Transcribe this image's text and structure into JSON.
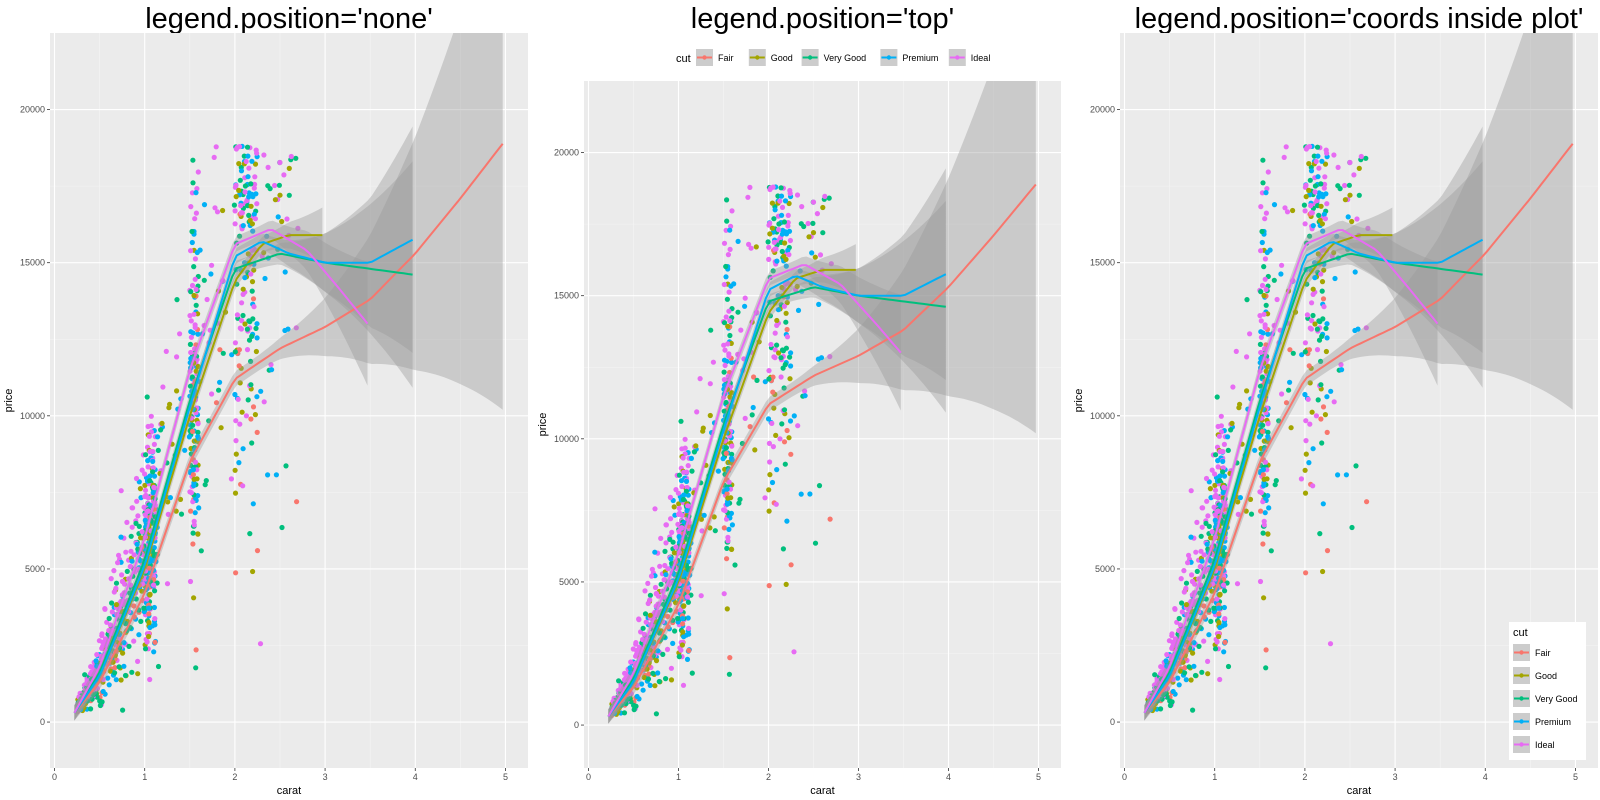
{
  "chart_data": [
    {
      "type": "scatter",
      "title": "legend.position='none'",
      "xlabel": "carat",
      "ylabel": "price",
      "xlim": [
        -0.05,
        5.25
      ],
      "ylim": [
        -1500,
        22500
      ],
      "xticks": [
        "0",
        "1",
        "2",
        "3",
        "4",
        "5"
      ],
      "yticks": [
        "0",
        "5000",
        "10000",
        "15000",
        "20000"
      ],
      "legend_position": "none",
      "smooth": true,
      "series": [
        {
          "name": "Fair",
          "color": "#F8766D",
          "smooth_x": [
            0.22,
            0.5,
            1.0,
            1.5,
            2.0,
            2.5,
            3.0,
            3.5,
            4.0,
            4.5,
            5.0
          ],
          "smooth_y": [
            300,
            1300,
            4200,
            8500,
            11200,
            12200,
            12900,
            13800,
            15300,
            17100,
            19000
          ]
        },
        {
          "name": "Good",
          "color": "#A3A500",
          "smooth_x": [
            0.22,
            0.5,
            1.0,
            1.5,
            2.0,
            2.3,
            2.6,
            3.0
          ],
          "smooth_y": [
            300,
            1500,
            5000,
            10000,
            14400,
            15600,
            15900,
            15900
          ]
        },
        {
          "name": "Very Good",
          "color": "#00BF7D",
          "smooth_x": [
            0.22,
            0.5,
            1.0,
            1.5,
            2.0,
            2.5,
            3.0,
            3.5,
            4.0
          ],
          "smooth_y": [
            300,
            1600,
            5300,
            10500,
            14800,
            15300,
            15000,
            14800,
            14600
          ]
        },
        {
          "name": "Premium",
          "color": "#00B0F6",
          "smooth_x": [
            0.22,
            0.5,
            1.0,
            1.5,
            2.0,
            2.3,
            2.6,
            3.0,
            3.5,
            4.0
          ],
          "smooth_y": [
            300,
            1500,
            5100,
            10300,
            15200,
            15700,
            15300,
            15000,
            15000,
            15800
          ]
        },
        {
          "name": "Ideal",
          "color": "#E76BF3",
          "smooth_x": [
            0.22,
            0.5,
            1.0,
            1.5,
            2.0,
            2.4,
            2.8,
            3.2,
            3.5
          ],
          "smooth_y": [
            300,
            1800,
            6000,
            11500,
            15600,
            16100,
            15400,
            14000,
            12900
          ]
        }
      ]
    },
    {
      "type": "scatter",
      "title": "legend.position='top'",
      "xlabel": "carat",
      "ylabel": "price",
      "xlim": [
        -0.05,
        5.25
      ],
      "ylim": [
        -1500,
        22500
      ],
      "xticks": [
        "0",
        "1",
        "2",
        "3",
        "4",
        "5"
      ],
      "yticks": [
        "0",
        "5000",
        "10000",
        "15000",
        "20000"
      ],
      "legend_position": "top",
      "legend_title": "cut",
      "smooth": true,
      "series": [
        {
          "name": "Fair",
          "color": "#F8766D",
          "smooth_x": [
            0.22,
            0.5,
            1.0,
            1.5,
            2.0,
            2.5,
            3.0,
            3.5,
            4.0,
            4.5,
            5.0
          ],
          "smooth_y": [
            300,
            1300,
            4200,
            8500,
            11200,
            12200,
            12900,
            13800,
            15300,
            17100,
            19000
          ]
        },
        {
          "name": "Good",
          "color": "#A3A500",
          "smooth_x": [
            0.22,
            0.5,
            1.0,
            1.5,
            2.0,
            2.3,
            2.6,
            3.0
          ],
          "smooth_y": [
            300,
            1500,
            5000,
            10000,
            14400,
            15600,
            15900,
            15900
          ]
        },
        {
          "name": "Very Good",
          "color": "#00BF7D",
          "smooth_x": [
            0.22,
            0.5,
            1.0,
            1.5,
            2.0,
            2.5,
            3.0,
            3.5,
            4.0
          ],
          "smooth_y": [
            300,
            1600,
            5300,
            10500,
            14800,
            15300,
            15000,
            14800,
            14600
          ]
        },
        {
          "name": "Premium",
          "color": "#00B0F6",
          "smooth_x": [
            0.22,
            0.5,
            1.0,
            1.5,
            2.0,
            2.3,
            2.6,
            3.0,
            3.5,
            4.0
          ],
          "smooth_y": [
            300,
            1500,
            5100,
            10300,
            15200,
            15700,
            15300,
            15000,
            15000,
            15800
          ]
        },
        {
          "name": "Ideal",
          "color": "#E76BF3",
          "smooth_x": [
            0.22,
            0.5,
            1.0,
            1.5,
            2.0,
            2.4,
            2.8,
            3.2,
            3.5
          ],
          "smooth_y": [
            300,
            1800,
            6000,
            11500,
            15600,
            16100,
            15400,
            14000,
            12900
          ]
        }
      ]
    },
    {
      "type": "scatter",
      "title": "legend.position='coords inside plot'",
      "xlabel": "carat",
      "ylabel": "price",
      "xlim": [
        -0.05,
        5.25
      ],
      "ylim": [
        -1500,
        22500
      ],
      "xticks": [
        "0",
        "1",
        "2",
        "3",
        "4",
        "5"
      ],
      "yticks": [
        "0",
        "5000",
        "10000",
        "15000",
        "20000"
      ],
      "legend_position": "bottom-right",
      "legend_title": "cut",
      "smooth": true,
      "series": [
        {
          "name": "Fair",
          "color": "#F8766D",
          "smooth_x": [
            0.22,
            0.5,
            1.0,
            1.5,
            2.0,
            2.5,
            3.0,
            3.5,
            4.0,
            4.5,
            5.0
          ],
          "smooth_y": [
            300,
            1300,
            4200,
            8500,
            11200,
            12200,
            12900,
            13800,
            15300,
            17100,
            19000
          ]
        },
        {
          "name": "Good",
          "color": "#A3A500",
          "smooth_x": [
            0.22,
            0.5,
            1.0,
            1.5,
            2.0,
            2.3,
            2.6,
            3.0
          ],
          "smooth_y": [
            300,
            1500,
            5000,
            10000,
            14400,
            15600,
            15900,
            15900
          ]
        },
        {
          "name": "Very Good",
          "color": "#00BF7D",
          "smooth_x": [
            0.22,
            0.5,
            1.0,
            1.5,
            2.0,
            2.5,
            3.0,
            3.5,
            4.0
          ],
          "smooth_y": [
            300,
            1600,
            5300,
            10500,
            14800,
            15300,
            15000,
            14800,
            14600
          ]
        },
        {
          "name": "Premium",
          "color": "#00B0F6",
          "smooth_x": [
            0.22,
            0.5,
            1.0,
            1.5,
            2.0,
            2.3,
            2.6,
            3.0,
            3.5,
            4.0
          ],
          "smooth_y": [
            300,
            1500,
            5100,
            10300,
            15200,
            15700,
            15300,
            15000,
            15000,
            15800
          ]
        },
        {
          "name": "Ideal",
          "color": "#E76BF3",
          "smooth_x": [
            0.22,
            0.5,
            1.0,
            1.5,
            2.0,
            2.4,
            2.8,
            3.2,
            3.5
          ],
          "smooth_y": [
            300,
            1800,
            6000,
            11500,
            15600,
            16100,
            15400,
            14000,
            12900
          ]
        }
      ]
    }
  ]
}
